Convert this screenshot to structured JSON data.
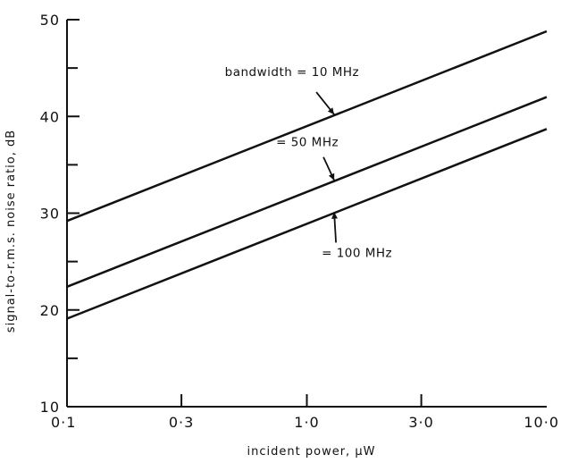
{
  "chart_data": {
    "type": "line",
    "x_scale": "log",
    "xlabel": "incident power, μW",
    "ylabel": "signal-to-r.m.s. noise ratio, dB",
    "xlim": [
      0.1,
      10.0
    ],
    "ylim": [
      10,
      50
    ],
    "x_ticks": [
      {
        "value": 0.1,
        "label": "0·1"
      },
      {
        "value": 0.3,
        "label": "0·3"
      },
      {
        "value": 1.0,
        "label": "1·0"
      },
      {
        "value": 3.0,
        "label": "3·0"
      },
      {
        "value": 10.0,
        "label": "10·0"
      }
    ],
    "y_ticks": [
      {
        "value": 10,
        "label": "10"
      },
      {
        "value": 20,
        "label": "20"
      },
      {
        "value": 30,
        "label": "30"
      },
      {
        "value": 40,
        "label": "40"
      },
      {
        "value": 50,
        "label": "50"
      }
    ],
    "x_minor_ticks": [
      0.3,
      1.0,
      3.0
    ],
    "y_minor_ticks": [
      15,
      25,
      35,
      45
    ],
    "grid": false,
    "series": [
      {
        "name": "bandwidth = 10 MHz",
        "x": [
          0.1,
          10.0
        ],
        "y": [
          29.2,
          48.8
        ],
        "label_at": {
          "x": 1.3,
          "y": 40.2
        }
      },
      {
        "name": "= 50 MHz",
        "x": [
          0.1,
          10.0
        ],
        "y": [
          22.4,
          42.0
        ],
        "label_at": {
          "x": 1.3,
          "y": 33.4
        }
      },
      {
        "name": "= 100 MHz",
        "x": [
          0.1,
          10.0
        ],
        "y": [
          19.1,
          38.7
        ],
        "label_at": {
          "x": 1.3,
          "y": 30.1
        }
      }
    ]
  }
}
